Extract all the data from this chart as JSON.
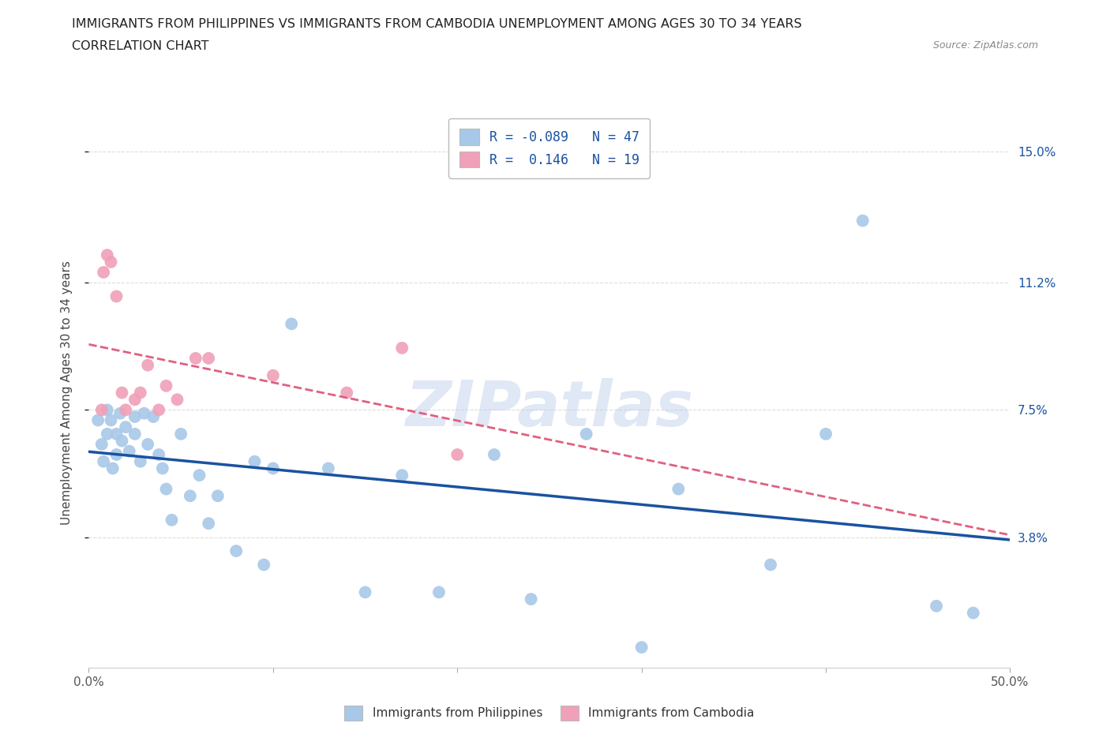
{
  "title_line1": "IMMIGRANTS FROM PHILIPPINES VS IMMIGRANTS FROM CAMBODIA UNEMPLOYMENT AMONG AGES 30 TO 34 YEARS",
  "title_line2": "CORRELATION CHART",
  "source": "Source: ZipAtlas.com",
  "ylabel": "Unemployment Among Ages 30 to 34 years",
  "watermark": "ZIPatlas",
  "xlim": [
    0.0,
    0.5
  ],
  "ylim": [
    0.0,
    0.16
  ],
  "xtick_positions": [
    0.0,
    0.1,
    0.2,
    0.3,
    0.4,
    0.5
  ],
  "xticklabels": [
    "0.0%",
    "",
    "",
    "",
    "",
    "50.0%"
  ],
  "ytick_positions": [
    0.038,
    0.075,
    0.112,
    0.15
  ],
  "ytick_labels": [
    "3.8%",
    "7.5%",
    "11.2%",
    "15.0%"
  ],
  "philippines_color": "#a8c8e8",
  "cambodia_color": "#f0a0b8",
  "philippines_line_color": "#1a52a0",
  "cambodia_line_color": "#e06080",
  "R_philippines": -0.089,
  "N_philippines": 47,
  "R_cambodia": 0.146,
  "N_cambodia": 19,
  "philippines_x": [
    0.005,
    0.007,
    0.008,
    0.01,
    0.01,
    0.012,
    0.013,
    0.015,
    0.015,
    0.017,
    0.018,
    0.02,
    0.022,
    0.025,
    0.025,
    0.028,
    0.03,
    0.032,
    0.035,
    0.038,
    0.04,
    0.042,
    0.045,
    0.05,
    0.055,
    0.06,
    0.065,
    0.07,
    0.08,
    0.09,
    0.095,
    0.1,
    0.11,
    0.13,
    0.15,
    0.17,
    0.19,
    0.22,
    0.24,
    0.27,
    0.3,
    0.32,
    0.37,
    0.4,
    0.42,
    0.46,
    0.48
  ],
  "philippines_y": [
    0.072,
    0.065,
    0.06,
    0.075,
    0.068,
    0.072,
    0.058,
    0.068,
    0.062,
    0.074,
    0.066,
    0.07,
    0.063,
    0.073,
    0.068,
    0.06,
    0.074,
    0.065,
    0.073,
    0.062,
    0.058,
    0.052,
    0.043,
    0.068,
    0.05,
    0.056,
    0.042,
    0.05,
    0.034,
    0.06,
    0.03,
    0.058,
    0.1,
    0.058,
    0.022,
    0.056,
    0.022,
    0.062,
    0.02,
    0.068,
    0.006,
    0.052,
    0.03,
    0.068,
    0.13,
    0.018,
    0.016
  ],
  "cambodia_x": [
    0.007,
    0.008,
    0.01,
    0.012,
    0.015,
    0.018,
    0.02,
    0.025,
    0.028,
    0.032,
    0.038,
    0.042,
    0.048,
    0.058,
    0.065,
    0.1,
    0.14,
    0.17,
    0.2
  ],
  "cambodia_y": [
    0.075,
    0.115,
    0.12,
    0.118,
    0.108,
    0.08,
    0.075,
    0.078,
    0.08,
    0.088,
    0.075,
    0.082,
    0.078,
    0.09,
    0.09,
    0.085,
    0.08,
    0.093,
    0.062
  ],
  "background_color": "#ffffff",
  "grid_color": "#dddddd",
  "title_color": "#222222",
  "axis_label_color": "#444444",
  "tick_label_color_right": "#1a52a0",
  "legend_label_philippines": "Immigrants from Philippines",
  "legend_label_cambodia": "Immigrants from Cambodia"
}
